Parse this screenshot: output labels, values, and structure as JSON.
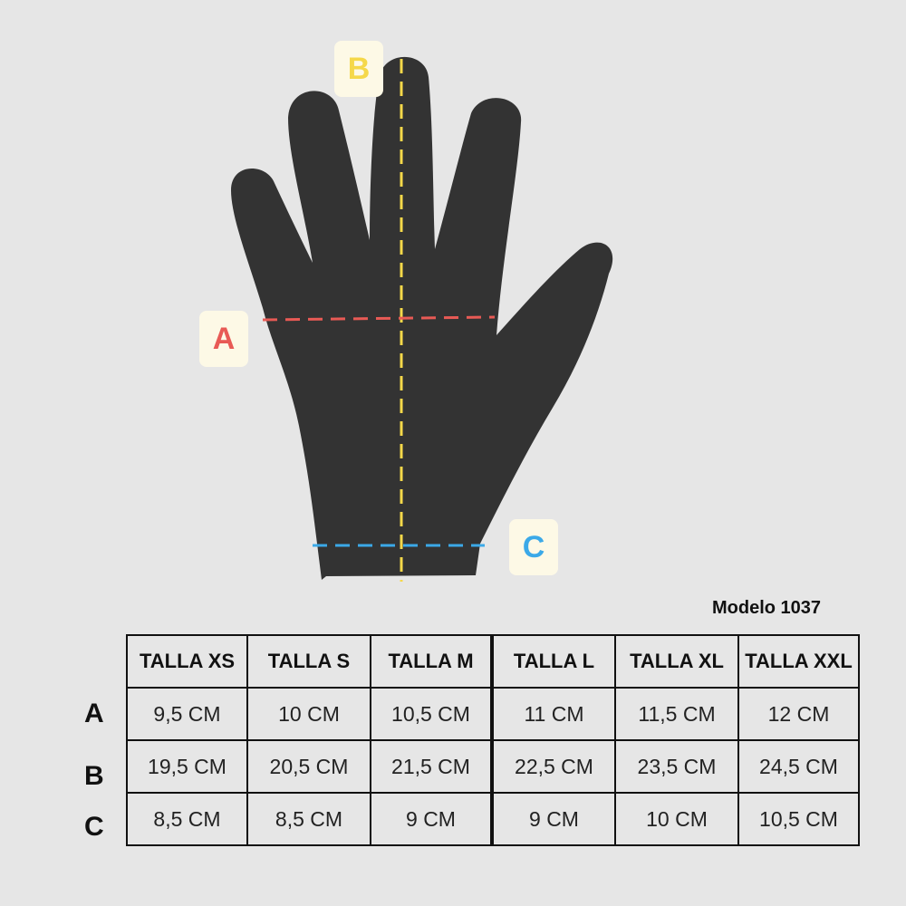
{
  "labels": {
    "a": "A",
    "b": "B",
    "c": "C"
  },
  "colors": {
    "a": "#e85a55",
    "b": "#f5d84a",
    "c": "#3ba9e8",
    "glove": "#333333"
  },
  "model": "Modelo 1037",
  "table": {
    "headers": [
      "TALLA XS",
      "TALLA S",
      "TALLA M",
      "TALLA L",
      "TALLA XL",
      "TALLA XXL"
    ],
    "rows": [
      {
        "label": "A",
        "values": [
          "9,5 CM",
          "10 CM",
          "10,5 CM",
          "11 CM",
          "11,5 CM",
          "12 CM"
        ]
      },
      {
        "label": "B",
        "values": [
          "19,5 CM",
          "20,5 CM",
          "21,5 CM",
          "22,5 CM",
          "23,5 CM",
          "24,5 CM"
        ]
      },
      {
        "label": "C",
        "values": [
          "8,5 CM",
          "8,5 CM",
          "9 CM",
          "9 CM",
          "10 CM",
          "10,5 CM"
        ]
      }
    ]
  }
}
